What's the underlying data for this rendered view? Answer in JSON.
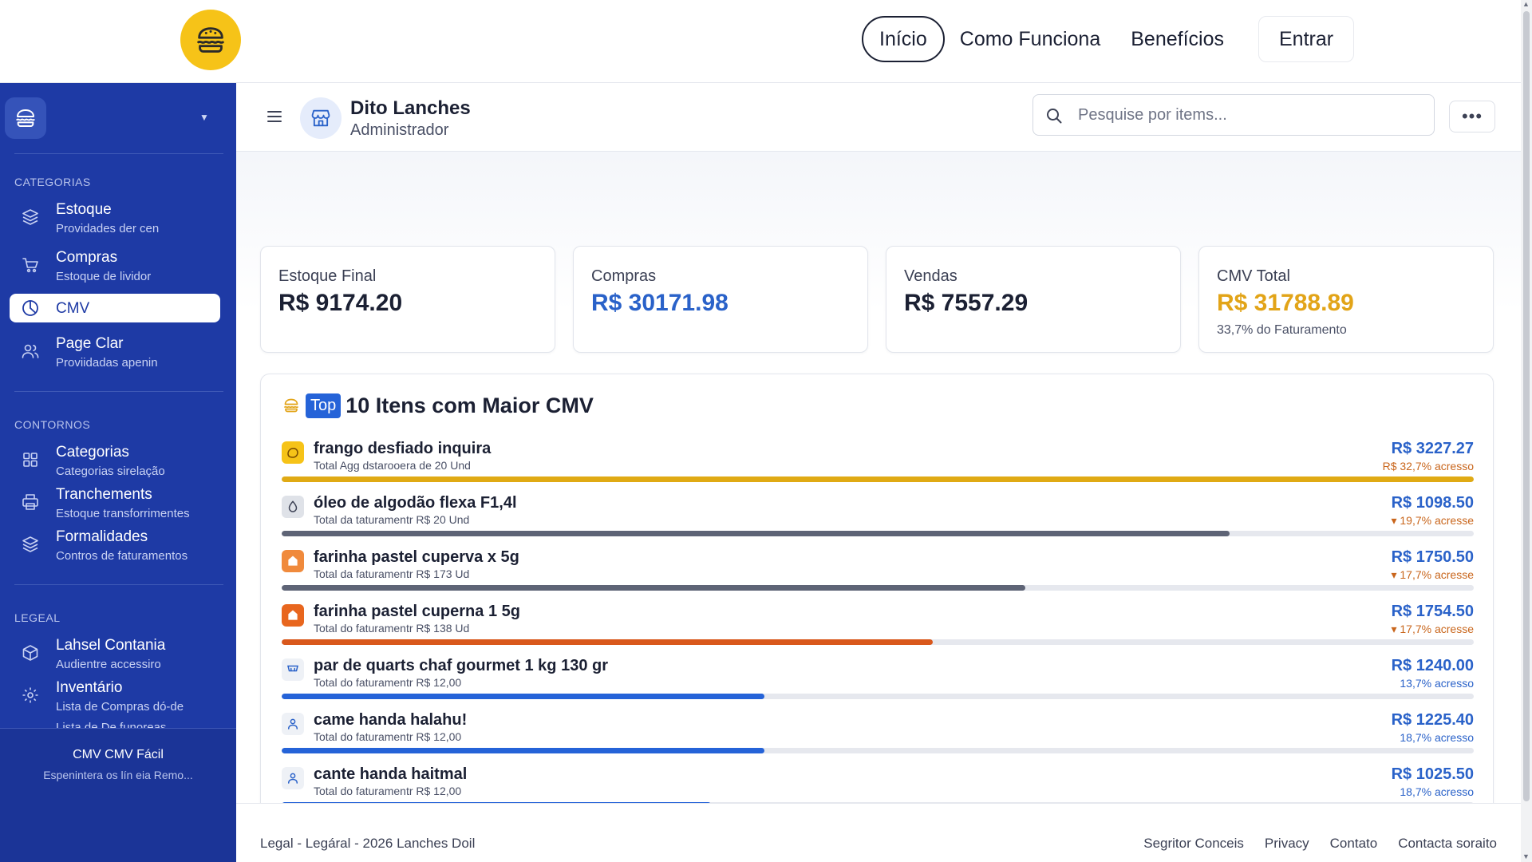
{
  "nav": {
    "links": [
      "Início",
      "Como Funciona",
      "Benefícios"
    ],
    "login": "Entrar"
  },
  "sidebar": {
    "sections": [
      "CATEGORIAS",
      "CONTORNOS",
      "LEGEAL"
    ],
    "items": [
      {
        "label": "Estoque",
        "sub": "Providades der cen",
        "icon": "layers-icon"
      },
      {
        "label": "Compras",
        "sub": "Estoque de lividor",
        "icon": "cart-icon"
      },
      {
        "label": "CMV",
        "sub": "",
        "icon": "pie-chart-icon"
      },
      {
        "label": "Page Clar",
        "sub": "Proviidadas apenin",
        "icon": "users-icon"
      },
      {
        "label": "Categorias",
        "sub": "Categorias sirelação",
        "icon": "grid-icon"
      },
      {
        "label": "Tranchements",
        "sub": "Estoque transforrimentes",
        "icon": "printer-icon"
      },
      {
        "label": "Formalidades",
        "sub": "Contros de faturamentos",
        "icon": "stack-icon"
      },
      {
        "label": "Lahsel Contania",
        "sub": "Audientre accessiro",
        "icon": "box-icon"
      },
      {
        "label": "Inventário",
        "sub": "Lista de Compras dó-de",
        "sub2": "Lista de De funoreas",
        "icon": "gear-icon"
      }
    ],
    "footer_title": "CMV CMV Fácil",
    "footer_sub": "Espenintera os lín eia Remo..."
  },
  "header": {
    "store_name": "Dito Lanches",
    "store_role": "Administrador",
    "search_placeholder": "Pesquise por items..."
  },
  "kpis": [
    {
      "label": "Estoque Final",
      "value": "R$ 9174.20",
      "sub": ""
    },
    {
      "label": "Compras",
      "value": "R$ 30171.98",
      "sub": ""
    },
    {
      "label": "Vendas",
      "value": "R$ 7557.29",
      "sub": ""
    },
    {
      "label": "CMV Total",
      "value": "R$ 31788.89",
      "sub": "33,7% do Faturamento"
    }
  ],
  "top_items": {
    "badge": "Top",
    "title": "10 Itens com Maior CMV",
    "rows": [
      {
        "name": "frango desfiado inquira",
        "sub": "Total Agg dstarooera de 20 Und",
        "value": "R$ 3227.27",
        "pct": "R$ 32,7% acresso",
        "progress": 1.0,
        "bar_color": "#e0aa14",
        "icon_bg": "#f6c318",
        "pct_color": "#c9661c",
        "pct_arrow": ""
      },
      {
        "name": "óleo de algodão flexa F1,4l",
        "sub": "Total da taturamentr R$ 20 Und",
        "value": "R$ 1098.50",
        "pct": "19,7% acresse",
        "progress": 0.795,
        "bar_color": "#5e6476",
        "icon_bg": "#dfe2e8",
        "pct_color": "#c9661c",
        "pct_arrow": "▾ "
      },
      {
        "name": "farinha pastel cuperva x 5g",
        "sub": "Total da faturamentr R$ 173 Ud",
        "value": "R$ 1750.50",
        "pct": "17,7% acresse",
        "progress": 0.624,
        "bar_color": "#5e6476",
        "icon_bg": "#f08a3c",
        "pct_color": "#c9661c",
        "pct_arrow": "▾ "
      },
      {
        "name": "farinha pastel cuperna 1 5g",
        "sub": "Total do faturamentr R$ 138 Ud",
        "value": "R$ 1754.50",
        "pct": "17,7% acresse",
        "progress": 0.546,
        "bar_color": "#d9581c",
        "icon_bg": "#e8661e",
        "pct_color": "#c9661c",
        "pct_arrow": "▾ "
      },
      {
        "name": "par de quarts chaf gourmet 1 kg 130 gr",
        "sub": "Total do faturamentr R$ 12,00",
        "value": "R$ 1240.00",
        "pct": "13,7% acresso",
        "progress": 0.405,
        "bar_color": "#2563d8",
        "icon_bg": "#eef1f6",
        "pct_color": "#2a62c9",
        "pct_arrow": ""
      },
      {
        "name": "came handa halahu!",
        "sub": "Total do faturamentr R$ 12,00",
        "value": "R$ 1225.40",
        "pct": "18,7% acresso",
        "progress": 0.405,
        "bar_color": "#2563d8",
        "icon_bg": "#eef1f6",
        "pct_color": "#2a62c9",
        "pct_arrow": ""
      },
      {
        "name": "cante handa haitmal",
        "sub": "Total do faturamentr R$ 12,00",
        "value": "R$ 1025.50",
        "pct": "18,7% acresso",
        "progress": 0.36,
        "bar_color": "#2563d8",
        "icon_bg": "#eef1f6",
        "pct_color": "#2a62c9",
        "pct_arrow": ""
      }
    ]
  },
  "footer": {
    "copy": "Legal - Legáral - 2026 Lanches Doil",
    "links": [
      "Segritor Conceis",
      "Privacy",
      "Contato",
      "Contacta soraito"
    ]
  },
  "colors": {
    "sidebar_bg": "#1e3aa5",
    "accent_blue": "#2a62c9",
    "accent_gold": "#e2a418",
    "logo_yellow": "#f6c318"
  }
}
